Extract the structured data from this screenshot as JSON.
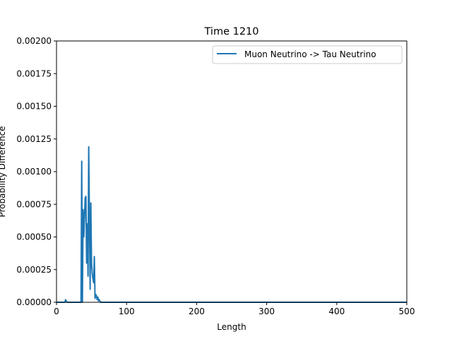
{
  "chart_data": {
    "type": "line",
    "title": "Time 1210",
    "xlabel": "Length",
    "ylabel": "Probability Difference",
    "xlim": [
      0,
      500
    ],
    "ylim": [
      0,
      0.002
    ],
    "x_ticks": [
      "0",
      "100",
      "200",
      "300",
      "400",
      "500"
    ],
    "x_tick_values": [
      0,
      100,
      200,
      300,
      400,
      500
    ],
    "y_ticks": [
      "0.00000",
      "0.00025",
      "0.00050",
      "0.00075",
      "0.00100",
      "0.00125",
      "0.00150",
      "0.00175",
      "0.00200"
    ],
    "y_tick_values": [
      0,
      0.00025,
      0.0005,
      0.00075,
      0.001,
      0.00125,
      0.0015,
      0.00175,
      0.002
    ],
    "legend_position": "top-right",
    "grid": false,
    "series": [
      {
        "name": "Muon Neutrino -> Tau Neutrino",
        "color": "#1f77b4",
        "x": [
          0,
          12,
          13,
          14,
          15,
          35,
          36,
          37,
          38,
          39,
          40,
          41,
          42,
          43,
          44,
          45,
          46,
          47,
          48,
          49,
          50,
          51,
          52,
          53,
          54,
          55,
          56,
          57,
          58,
          59,
          60,
          61,
          62,
          63,
          64,
          65,
          100,
          200,
          300,
          400,
          500
        ],
        "y": [
          0,
          0,
          2e-05,
          1e-05,
          0,
          0,
          0.00108,
          0.0,
          0.00071,
          0.0005,
          0.00065,
          0.0008,
          0.00081,
          0.0003,
          0.0006,
          0.0002,
          0.00119,
          0.00065,
          0.0001,
          0.00076,
          0.0003,
          0.00022,
          0.00018,
          0.00015,
          0.00035,
          3e-05,
          6e-05,
          5e-05,
          2e-05,
          4e-05,
          1e-05,
          2e-05,
          1e-05,
          0,
          0,
          0,
          0,
          0,
          0,
          0,
          0
        ]
      }
    ]
  }
}
